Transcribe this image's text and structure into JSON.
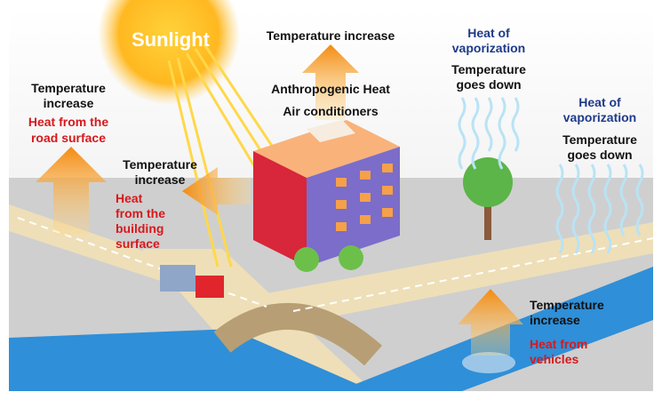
{
  "sunlight": "Sunlight",
  "top": {
    "effect": "Temperature increase",
    "sources": [
      "Anthropogenic Heat",
      "Air conditioners"
    ]
  },
  "trees": {
    "cause": [
      "Heat of",
      "vaporization"
    ],
    "effect": [
      "Temperature",
      "goes down"
    ]
  },
  "water": {
    "cause": [
      "Heat of",
      "vaporization"
    ],
    "effect": [
      "Temperature",
      "goes down"
    ]
  },
  "road": {
    "effect": [
      "Temperature",
      "increase"
    ],
    "source": [
      "Heat from the",
      "road surface"
    ]
  },
  "building": {
    "effect": [
      "Temperature",
      "increase"
    ],
    "source": [
      "Heat",
      "from the",
      "building",
      "surface"
    ]
  },
  "vehicles": {
    "effect": [
      "Temperature",
      "increase"
    ],
    "source": [
      "Heat from",
      "vehicles"
    ]
  }
}
